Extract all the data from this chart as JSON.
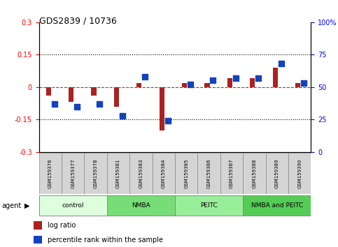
{
  "title": "GDS2839 / 10736",
  "samples": [
    "GSM159376",
    "GSM159377",
    "GSM159378",
    "GSM159381",
    "GSM159383",
    "GSM159384",
    "GSM159385",
    "GSM159386",
    "GSM159387",
    "GSM159388",
    "GSM159389",
    "GSM159390"
  ],
  "log_ratio": [
    -0.04,
    -0.07,
    -0.04,
    -0.09,
    0.02,
    -0.2,
    0.02,
    0.02,
    0.04,
    0.04,
    0.09,
    0.02
  ],
  "percentile_rank": [
    37,
    35,
    37,
    28,
    58,
    24,
    52,
    55,
    57,
    57,
    68,
    53
  ],
  "ylim_left": [
    -0.3,
    0.3
  ],
  "ylim_right": [
    0,
    100
  ],
  "yticks_left": [
    -0.3,
    -0.15,
    0.0,
    0.15,
    0.3
  ],
  "yticks_right": [
    0,
    25,
    50,
    75,
    100
  ],
  "bar_color": "#aa2222",
  "dot_color": "#1144bb",
  "zero_line_color": "#cc2222",
  "grid_color": "#000000",
  "groups": [
    {
      "label": "control",
      "start": 0,
      "end": 3,
      "color": "#ddffdd"
    },
    {
      "label": "NMBA",
      "start": 3,
      "end": 6,
      "color": "#77dd77"
    },
    {
      "label": "PEITC",
      "start": 6,
      "end": 9,
      "color": "#99ee99"
    },
    {
      "label": "NMBA and PEITC",
      "start": 9,
      "end": 12,
      "color": "#55cc55"
    }
  ],
  "agent_label": "agent",
  "figsize": [
    4.83,
    3.54
  ],
  "dpi": 100
}
